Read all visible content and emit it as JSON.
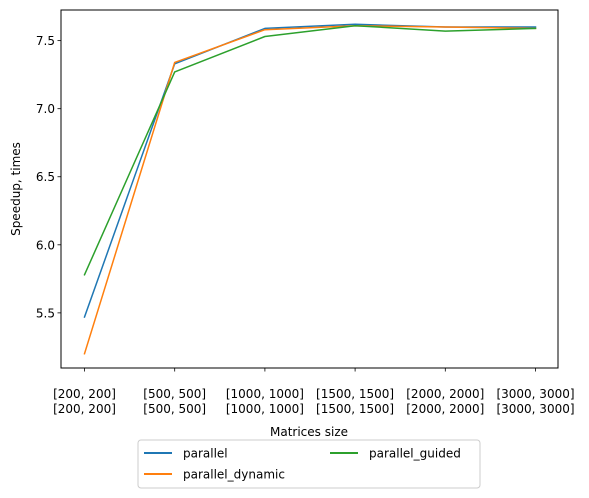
{
  "chart_data": {
    "type": "line",
    "categories": [
      "[200, 200]\n[200, 200]",
      "[500, 500]\n[500, 500]",
      "[1000, 1000]\n[1000, 1000]",
      "[1500, 1500]\n[1500, 1500]",
      "[2000, 2000]\n[2000, 2000]",
      "[3000, 3000]\n[3000, 3000]"
    ],
    "series": [
      {
        "name": "parallel",
        "color": "#1f77b4",
        "values": [
          5.47,
          7.33,
          7.59,
          7.62,
          7.6,
          7.6
        ]
      },
      {
        "name": "parallel_dynamic",
        "color": "#ff7f0e",
        "values": [
          5.2,
          7.34,
          7.58,
          7.61,
          7.6,
          7.59
        ]
      },
      {
        "name": "parallel_guided",
        "color": "#2ca02c",
        "values": [
          5.78,
          7.27,
          7.53,
          7.61,
          7.57,
          7.59
        ]
      }
    ],
    "xlabel": "Matrices size",
    "ylabel": "Speedup, times",
    "ylim": [
      5.095,
      7.725
    ],
    "yticks": [
      5.5,
      6.0,
      6.5,
      7.0,
      7.5
    ],
    "ytick_labels": [
      "5.5",
      "6.0",
      "6.5",
      "7.0",
      "7.5"
    ],
    "grid": false,
    "legend_position": "below"
  }
}
